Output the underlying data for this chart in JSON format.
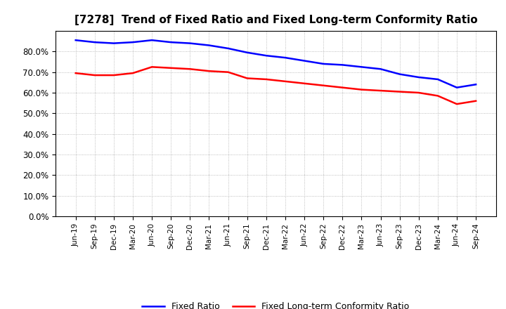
{
  "title": "[7278]  Trend of Fixed Ratio and Fixed Long-term Conformity Ratio",
  "x_labels": [
    "Jun-19",
    "Sep-19",
    "Dec-19",
    "Mar-20",
    "Jun-20",
    "Sep-20",
    "Dec-20",
    "Mar-21",
    "Jun-21",
    "Sep-21",
    "Dec-21",
    "Mar-22",
    "Jun-22",
    "Sep-22",
    "Dec-22",
    "Mar-23",
    "Jun-23",
    "Sep-23",
    "Dec-23",
    "Mar-24",
    "Jun-24",
    "Sep-24"
  ],
  "fixed_ratio": [
    85.5,
    84.5,
    84.0,
    84.5,
    85.5,
    84.5,
    84.0,
    83.0,
    81.5,
    79.5,
    78.0,
    77.0,
    75.5,
    74.0,
    73.5,
    72.5,
    71.5,
    69.0,
    67.5,
    66.5,
    62.5,
    64.0
  ],
  "fixed_ltcr": [
    69.5,
    68.5,
    68.5,
    69.5,
    72.5,
    72.0,
    71.5,
    70.5,
    70.0,
    67.0,
    66.5,
    65.5,
    64.5,
    63.5,
    62.5,
    61.5,
    61.0,
    60.5,
    60.0,
    58.5,
    54.5,
    56.0
  ],
  "fixed_ratio_color": "#0000FF",
  "fixed_ltcr_color": "#FF0000",
  "ylim": [
    0,
    90
  ],
  "yticks": [
    0,
    10,
    20,
    30,
    40,
    50,
    60,
    70,
    80
  ],
  "background_color": "#FFFFFF",
  "grid_color": "#AAAAAA",
  "legend_fixed_ratio": "Fixed Ratio",
  "legend_fixed_ltcr": "Fixed Long-term Conformity Ratio",
  "title_fontsize": 11
}
